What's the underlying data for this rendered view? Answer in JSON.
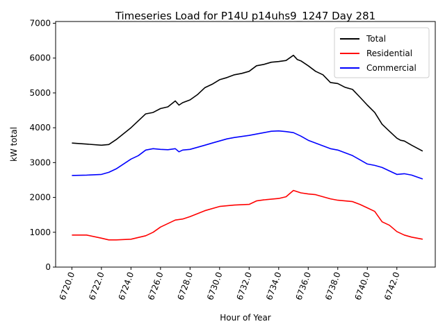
{
  "chart_data": {
    "type": "line",
    "title": "Timeseries Load for P14U p14uhs9_1247  Day 281",
    "xlabel": "Hour of Year",
    "ylabel": "kW total",
    "xlim": [
      6718.9,
      6744.6
    ],
    "ylim": [
      0,
      7050
    ],
    "xticks": [
      6720,
      6722,
      6724,
      6726,
      6728,
      6730,
      6732,
      6734,
      6736,
      6738,
      6740,
      6742
    ],
    "xtick_labels": [
      "6720.0",
      "6722.0",
      "6724.0",
      "6726.0",
      "6728.0",
      "6730.0",
      "6732.0",
      "6734.0",
      "6736.0",
      "6738.0",
      "6740.0",
      "6742.0"
    ],
    "yticks": [
      0,
      1000,
      2000,
      3000,
      4000,
      5000,
      6000,
      7000
    ],
    "ytick_labels": [
      "0",
      "1000",
      "2000",
      "3000",
      "4000",
      "5000",
      "6000",
      "7000"
    ],
    "grid": false,
    "legend_position": "top-right",
    "series": [
      {
        "name": "Total",
        "color": "#000000",
        "x": [
          6720,
          6721,
          6722,
          6722.5,
          6723,
          6724,
          6725,
          6725.5,
          6726,
          6726.5,
          6727,
          6727.25,
          6727.5,
          6728,
          6728.5,
          6729,
          6729.5,
          6730,
          6730.5,
          6731,
          6731.5,
          6732,
          6732.5,
          6733,
          6733.5,
          6734,
          6734.5,
          6735,
          6735.25,
          6735.5,
          6736,
          6736.5,
          6737,
          6737.5,
          6738,
          6738.5,
          6739,
          6739.5,
          6740,
          6740.5,
          6741,
          6741.5,
          6742,
          6742.25,
          6742.5,
          6743,
          6743.75
        ],
        "values": [
          3560,
          3530,
          3500,
          3520,
          3660,
          4000,
          4400,
          4440,
          4550,
          4600,
          4770,
          4650,
          4720,
          4800,
          4950,
          5150,
          5250,
          5380,
          5440,
          5520,
          5560,
          5620,
          5780,
          5820,
          5880,
          5900,
          5930,
          6080,
          5960,
          5920,
          5780,
          5620,
          5520,
          5300,
          5270,
          5160,
          5100,
          4880,
          4650,
          4440,
          4100,
          3900,
          3700,
          3640,
          3620,
          3500,
          3330
        ]
      },
      {
        "name": "Residential",
        "color": "#ff0000",
        "x": [
          6720,
          6721,
          6722,
          6722.5,
          6723,
          6724,
          6725,
          6725.5,
          6726,
          6727,
          6727.5,
          6728,
          6729,
          6730,
          6731,
          6732,
          6732.5,
          6733,
          6734,
          6734.5,
          6735,
          6735.5,
          6736,
          6736.5,
          6737,
          6737.5,
          6738,
          6739,
          6739.5,
          6740,
          6740.5,
          6741,
          6741.5,
          6742,
          6742.5,
          6743,
          6743.75
        ],
        "values": [
          920,
          920,
          830,
          780,
          780,
          800,
          900,
          1000,
          1150,
          1350,
          1380,
          1450,
          1620,
          1740,
          1780,
          1800,
          1900,
          1930,
          1970,
          2020,
          2200,
          2130,
          2100,
          2080,
          2020,
          1960,
          1920,
          1880,
          1800,
          1700,
          1600,
          1300,
          1200,
          1020,
          920,
          860,
          800
        ]
      },
      {
        "name": "Commercial",
        "color": "#0000ff",
        "x": [
          6720,
          6721,
          6722,
          6722.5,
          6723,
          6724,
          6724.5,
          6725,
          6725.5,
          6726,
          6726.5,
          6727,
          6727.25,
          6727.5,
          6728,
          6728.5,
          6729,
          6729.5,
          6730,
          6730.5,
          6731,
          6731.5,
          6732,
          6732.5,
          6733,
          6733.5,
          6734,
          6734.5,
          6735,
          6735.5,
          6736,
          6736.5,
          6737,
          6737.5,
          6738,
          6738.5,
          6739,
          6739.5,
          6740,
          6740.5,
          6741,
          6741.5,
          6742,
          6742.5,
          6743,
          6743.75
        ],
        "values": [
          2630,
          2640,
          2660,
          2720,
          2820,
          3100,
          3200,
          3360,
          3400,
          3380,
          3370,
          3400,
          3310,
          3360,
          3380,
          3440,
          3500,
          3560,
          3620,
          3680,
          3720,
          3750,
          3780,
          3820,
          3860,
          3900,
          3910,
          3890,
          3860,
          3760,
          3640,
          3560,
          3480,
          3400,
          3360,
          3280,
          3200,
          3080,
          2960,
          2920,
          2860,
          2760,
          2660,
          2680,
          2640,
          2530
        ]
      }
    ]
  }
}
